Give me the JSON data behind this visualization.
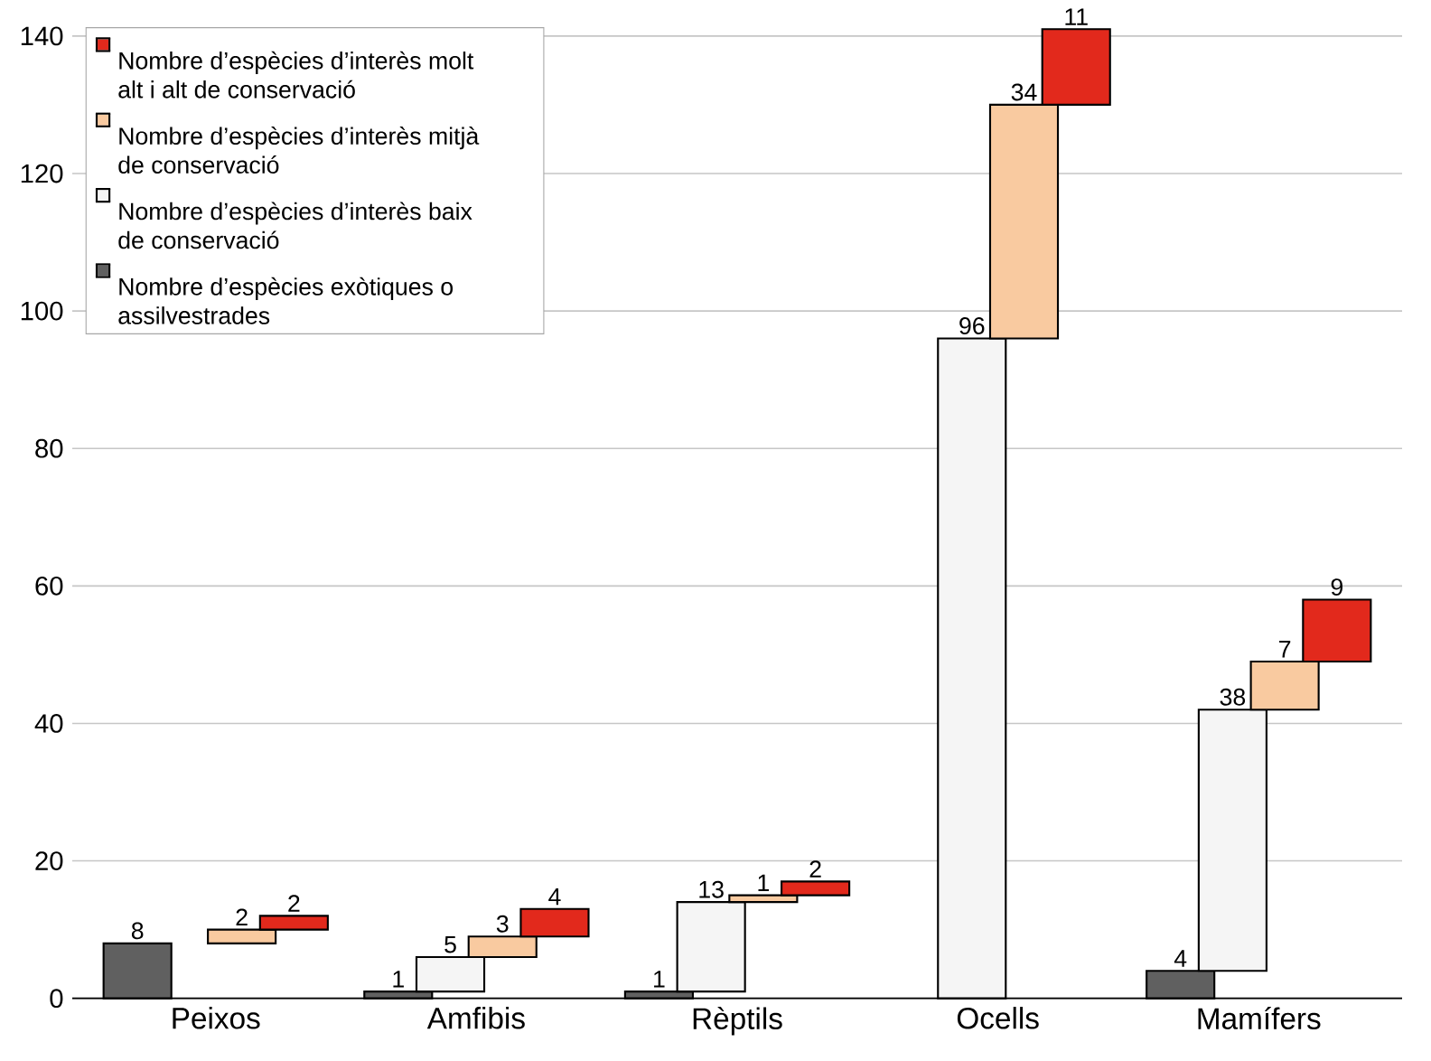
{
  "chart_data": {
    "type": "bar",
    "categories": [
      "Peixos",
      "Amfibis",
      "Rèptils",
      "Ocells",
      "Mamífers"
    ],
    "series": [
      {
        "name": "Nombre d’espècies exòtiques o assilvestrades",
        "color": "#606060",
        "values": [
          8,
          1,
          1,
          null,
          4
        ],
        "base": [
          0,
          0,
          0,
          null,
          0
        ]
      },
      {
        "name": "Nombre d’espècies d’interès baix de conservació",
        "color": "#f5f5f5",
        "values": [
          null,
          5,
          13,
          96,
          38
        ],
        "base": [
          null,
          1,
          1,
          0,
          4
        ]
      },
      {
        "name": "Nombre d’espècies d’interès mitjà de conservació",
        "color": "#f9caa0",
        "values": [
          2,
          3,
          1,
          34,
          7
        ],
        "base": [
          8,
          6,
          14,
          96,
          42
        ]
      },
      {
        "name": "Nombre d’espècies d’interès molt alt i alt de conservació",
        "color": "#e2291c",
        "values": [
          2,
          4,
          2,
          11,
          9
        ],
        "base": [
          10,
          9,
          15,
          130,
          49
        ]
      }
    ],
    "ylim": [
      0,
      142
    ],
    "yticks": [
      0,
      20,
      40,
      60,
      80,
      100,
      120,
      140
    ],
    "grid": "y",
    "legend": "top left",
    "data_labels": true
  }
}
